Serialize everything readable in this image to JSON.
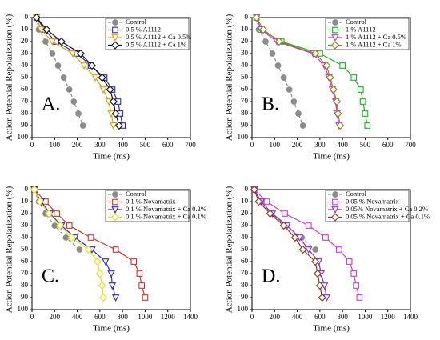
{
  "chart_data": [
    {
      "type": "line",
      "orientation": "horizontal",
      "panel": "A.",
      "xlabel": "Time (ms)",
      "ylabel": "Action Potential Repolarization (%)",
      "x": [
        0,
        10,
        20,
        30,
        40,
        50,
        60,
        70,
        80,
        90
      ],
      "xlim": [
        0,
        700
      ],
      "xticks": [
        0,
        100,
        200,
        300,
        400,
        500,
        600,
        700
      ],
      "ylim": [
        0,
        100
      ],
      "yticks": [
        0,
        10,
        20,
        30,
        40,
        50,
        60,
        70,
        80,
        90,
        100
      ],
      "invert_y": true,
      "series": [
        {
          "name": "Control",
          "color": "#8c8c8c",
          "marker": "circle",
          "dash": true,
          "filled": true,
          "values": [
            20,
            30,
            60,
            90,
            115,
            140,
            165,
            185,
            205,
            225
          ]
        },
        {
          "name": "0.5 % A1112",
          "color": "#2b2bb0",
          "marker": "square",
          "values": [
            20,
            55,
            105,
            200,
            260,
            320,
            355,
            380,
            390,
            400
          ]
        },
        {
          "name": "0.5 % A1112 + Ca 0.5%",
          "color": "#d4a017",
          "marker": "triangle",
          "values": [
            20,
            40,
            90,
            180,
            230,
            280,
            315,
            340,
            350,
            360
          ]
        },
        {
          "name": "0.5 % A1112 + Ca 1%",
          "color": "#111111",
          "marker": "diamond",
          "values": [
            20,
            65,
            130,
            215,
            265,
            310,
            345,
            360,
            370,
            385
          ]
        }
      ]
    },
    {
      "type": "line",
      "orientation": "horizontal",
      "panel": "B.",
      "xlabel": "Time (ms)",
      "ylabel": "Action Potential Repolarization (%)",
      "x": [
        0,
        10,
        20,
        30,
        40,
        50,
        60,
        70,
        80,
        90
      ],
      "xlim": [
        0,
        700
      ],
      "xticks": [
        0,
        100,
        200,
        300,
        400,
        500,
        600,
        700
      ],
      "ylim": [
        0,
        100
      ],
      "yticks": [
        0,
        10,
        20,
        30,
        40,
        50,
        60,
        70,
        80,
        90,
        100
      ],
      "invert_y": true,
      "series": [
        {
          "name": "Control",
          "color": "#8c8c8c",
          "marker": "circle",
          "dash": true,
          "filled": true,
          "values": [
            20,
            30,
            60,
            90,
            115,
            140,
            165,
            185,
            205,
            225
          ]
        },
        {
          "name": "1 % A1112",
          "color": "#22b022",
          "marker": "square",
          "values": [
            20,
            40,
            130,
            300,
            400,
            450,
            480,
            490,
            500,
            510
          ]
        },
        {
          "name": "1 % A1112 + Ca 0.5%",
          "color": "#b040e0",
          "marker": "triangle",
          "values": [
            20,
            40,
            110,
            270,
            320,
            340,
            355,
            370,
            375,
            385
          ]
        },
        {
          "name": "1 % A1112 + Ca 1%",
          "color": "#9a7a20",
          "marker": "diamond",
          "values": [
            20,
            50,
            120,
            280,
            330,
            345,
            360,
            375,
            380,
            390
          ]
        }
      ]
    },
    {
      "type": "line",
      "orientation": "horizontal",
      "panel": "C.",
      "xlabel": "Time (ms)",
      "ylabel": "Action Potential Repolarization (%)",
      "x": [
        0,
        10,
        20,
        30,
        40,
        50,
        60,
        70,
        80,
        90
      ],
      "xlim": [
        0,
        1400
      ],
      "xticks": [
        0,
        200,
        400,
        600,
        800,
        1000,
        1200,
        1400
      ],
      "ylim": [
        0,
        100
      ],
      "yticks": [
        0,
        10,
        20,
        30,
        40,
        50,
        60,
        70,
        80,
        90,
        100
      ],
      "invert_y": true,
      "series": [
        {
          "name": "Control",
          "color": "#8c8c8c",
          "marker": "circle",
          "dash": true,
          "filled": true,
          "values": [
            20,
            60,
            120,
            200,
            300,
            420,
            null,
            null,
            null,
            null
          ]
        },
        {
          "name": "0.1 % Novamatrix",
          "color": "#c0392b",
          "marker": "square",
          "values": [
            20,
            120,
            220,
            330,
            520,
            740,
            900,
            950,
            970,
            1000
          ]
        },
        {
          "name": "0.1 % Novamatrix + Ca 0.2%",
          "color": "#2b2bd0",
          "marker": "triangle",
          "values": [
            20,
            80,
            160,
            260,
            380,
            530,
            650,
            700,
            710,
            740
          ]
        },
        {
          "name": "0.1 % Novamatrix + Ca 0.1%",
          "color": "#e6e020",
          "marker": "diamond",
          "values": [
            20,
            70,
            150,
            250,
            350,
            500,
            580,
            600,
            620,
            630
          ]
        }
      ]
    },
    {
      "type": "line",
      "orientation": "horizontal",
      "panel": "D.",
      "xlabel": "Time (ms)",
      "ylabel": "Action Potential Repolarization (%)",
      "x": [
        0,
        10,
        20,
        30,
        40,
        50,
        60,
        70,
        80,
        90
      ],
      "xlim": [
        0,
        1400
      ],
      "xticks": [
        0,
        200,
        400,
        600,
        800,
        1000,
        1200,
        1400
      ],
      "ylim": [
        0,
        100
      ],
      "yticks": [
        0,
        10,
        20,
        30,
        40,
        50,
        60,
        70,
        80,
        90,
        100
      ],
      "invert_y": true,
      "series": [
        {
          "name": "Control",
          "color": "#8c8c8c",
          "marker": "circle",
          "dash": true,
          "filled": true,
          "values": [
            20,
            80,
            170,
            300,
            440,
            560,
            null,
            null,
            null,
            null
          ]
        },
        {
          "name": "0.05 % Novamatrix",
          "color": "#c040d0",
          "marker": "square",
          "values": [
            20,
            130,
            290,
            500,
            650,
            770,
            860,
            900,
            920,
            950
          ]
        },
        {
          "name": "0.05% Novamatrix + Ca 0.2%",
          "color": "#8a2be2",
          "marker": "triangle",
          "values": [
            20,
            80,
            180,
            310,
            420,
            500,
            590,
            610,
            640,
            660
          ]
        },
        {
          "name": "0.05 % Novamatrix + Ca 0.1%",
          "color": "#8b3a1a",
          "marker": "diamond",
          "values": [
            20,
            60,
            160,
            280,
            380,
            450,
            560,
            580,
            600,
            620
          ]
        }
      ]
    }
  ]
}
